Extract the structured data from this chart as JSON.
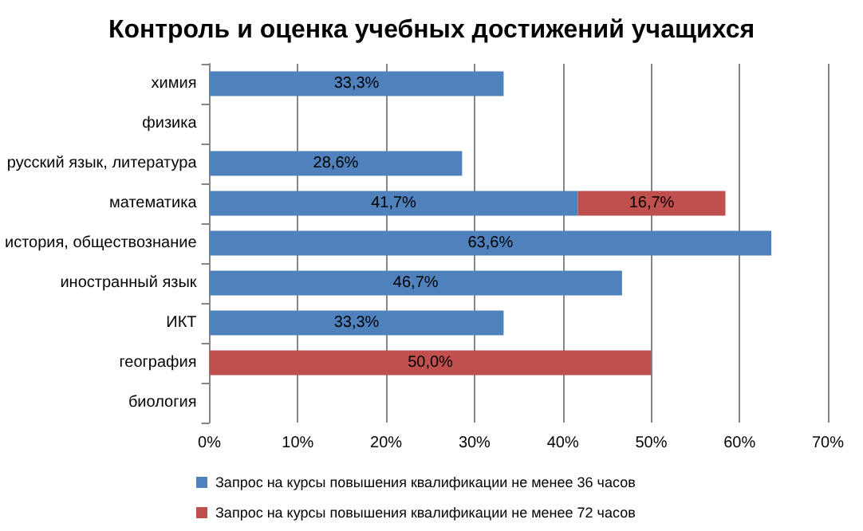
{
  "chart_data": {
    "type": "bar",
    "orientation": "horizontal",
    "stacked": true,
    "title": "Контроль и оценка учебных достижений учащихся",
    "categories": [
      "химия",
      "физика",
      "русский язык, литература",
      "математика",
      "история, обществознание",
      "иностранный язык",
      "ИКТ",
      "география",
      "биология"
    ],
    "series": [
      {
        "name": "Запрос на курсы повышения квалификации не менее 36 часов",
        "color": "#4f81bd",
        "values": [
          33.3,
          null,
          28.6,
          41.7,
          63.6,
          46.7,
          33.3,
          null,
          null
        ],
        "value_labels": [
          "33,3%",
          null,
          "28,6%",
          "41,7%",
          "63,6%",
          "46,7%",
          "33,3%",
          null,
          null
        ]
      },
      {
        "name": "Запрос на курсы повышения квалификации не менее 72 часов",
        "color": "#c0504d",
        "values": [
          null,
          null,
          null,
          16.7,
          null,
          null,
          null,
          50.0,
          null
        ],
        "value_labels": [
          null,
          null,
          null,
          "16,7%",
          null,
          null,
          null,
          "50,0%",
          null
        ]
      }
    ],
    "xlim": [
      0,
      70
    ],
    "xticks": [
      {
        "value": 0,
        "label": "0%"
      },
      {
        "value": 10,
        "label": "10%"
      },
      {
        "value": 20,
        "label": "20%"
      },
      {
        "value": 30,
        "label": "30%"
      },
      {
        "value": 40,
        "label": "40%"
      },
      {
        "value": 50,
        "label": "50%"
      },
      {
        "value": 60,
        "label": "60%"
      },
      {
        "value": 70,
        "label": "70%"
      }
    ],
    "grid": "x",
    "legend": "bottom"
  }
}
